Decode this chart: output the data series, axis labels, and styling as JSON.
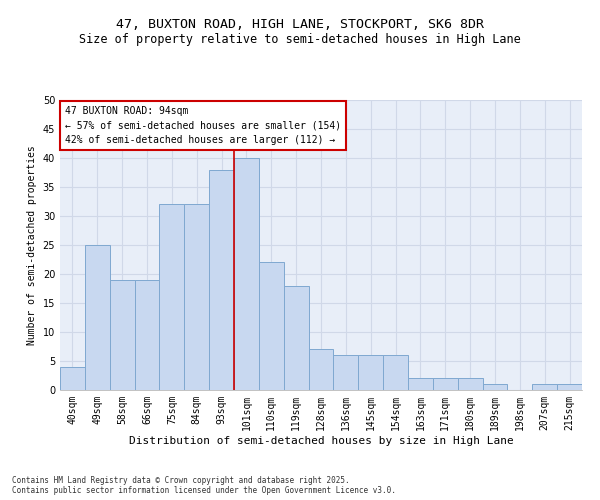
{
  "title1": "47, BUXTON ROAD, HIGH LANE, STOCKPORT, SK6 8DR",
  "title2": "Size of property relative to semi-detached houses in High Lane",
  "xlabel": "Distribution of semi-detached houses by size in High Lane",
  "ylabel": "Number of semi-detached properties",
  "categories": [
    "40sqm",
    "49sqm",
    "58sqm",
    "66sqm",
    "75sqm",
    "84sqm",
    "93sqm",
    "101sqm",
    "110sqm",
    "119sqm",
    "128sqm",
    "136sqm",
    "145sqm",
    "154sqm",
    "163sqm",
    "171sqm",
    "180sqm",
    "189sqm",
    "198sqm",
    "207sqm",
    "215sqm"
  ],
  "values": [
    4,
    25,
    19,
    19,
    32,
    32,
    38,
    40,
    22,
    18,
    7,
    6,
    6,
    6,
    2,
    2,
    2,
    1,
    0,
    1,
    1
  ],
  "bar_color": "#c8d8f0",
  "bar_edge_color": "#7fa8d0",
  "vline_pos": 6.5,
  "vline_color": "#cc0000",
  "annotation_text": "47 BUXTON ROAD: 94sqm\n← 57% of semi-detached houses are smaller (154)\n42% of semi-detached houses are larger (112) →",
  "annotation_box_color": "#cc0000",
  "ylim": [
    0,
    50
  ],
  "yticks": [
    0,
    5,
    10,
    15,
    20,
    25,
    30,
    35,
    40,
    45,
    50
  ],
  "grid_color": "#d0d8e8",
  "bg_color": "#e8eef8",
  "footer": "Contains HM Land Registry data © Crown copyright and database right 2025.\nContains public sector information licensed under the Open Government Licence v3.0.",
  "title_fontsize": 9.5,
  "subtitle_fontsize": 8.5,
  "bar_fontsize": 7,
  "ylabel_fontsize": 7,
  "xlabel_fontsize": 8,
  "footer_fontsize": 5.5,
  "annot_fontsize": 7
}
